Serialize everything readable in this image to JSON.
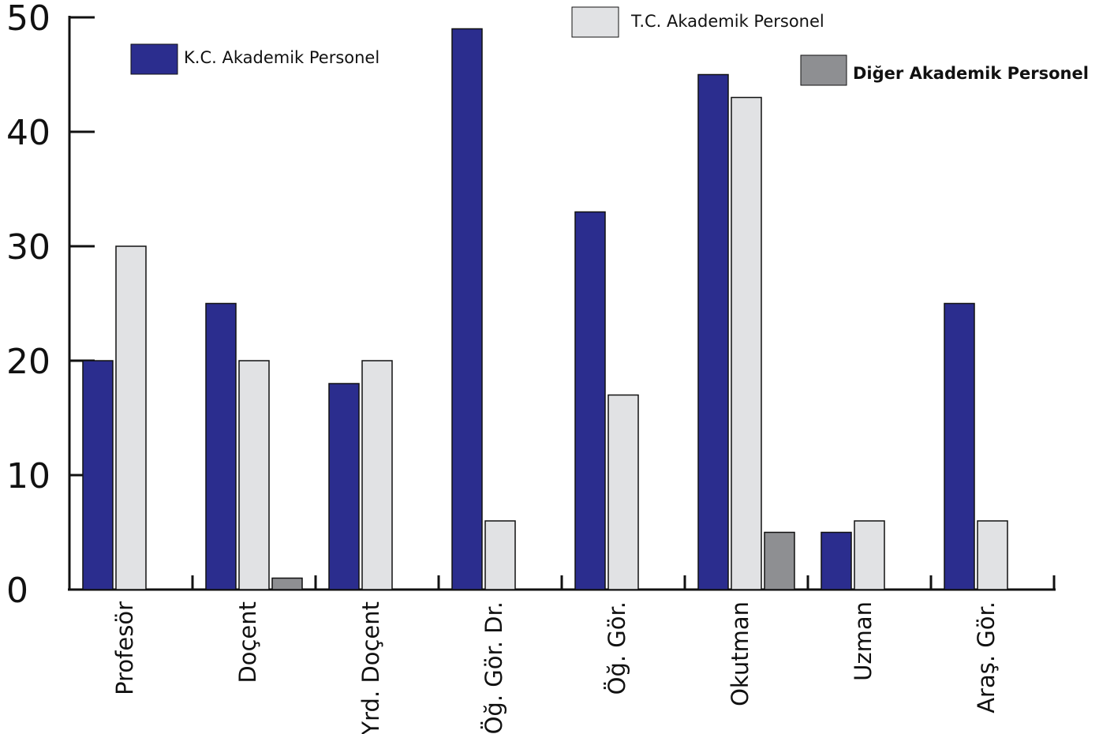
{
  "chart_data": {
    "type": "bar",
    "title": "",
    "xlabel": "",
    "ylabel": "",
    "ylim": [
      0,
      50
    ],
    "yticks": [
      0,
      10,
      20,
      30,
      40,
      50
    ],
    "grid": false,
    "categories": [
      "Profesör",
      "Doçent",
      "Yrd. Doçent",
      "Öğ. Gör. Dr.",
      "Öğ. Gör.",
      "Okutman",
      "Uzman",
      "Araş. Gör."
    ],
    "series": [
      {
        "name": "K.C. Akademik Personel",
        "color": "#2b2d8e",
        "values": [
          20,
          25,
          18,
          49,
          33,
          45,
          5,
          25
        ]
      },
      {
        "name": "T.C. Akademik Personel",
        "color": "#e1e2e4",
        "values": [
          30,
          20,
          20,
          6,
          17,
          43,
          6,
          6
        ]
      },
      {
        "name": "Diğer Akademik Personel",
        "color": "#8e8f92",
        "values": [
          0,
          1,
          0,
          0,
          0,
          5,
          0,
          0
        ]
      }
    ]
  }
}
